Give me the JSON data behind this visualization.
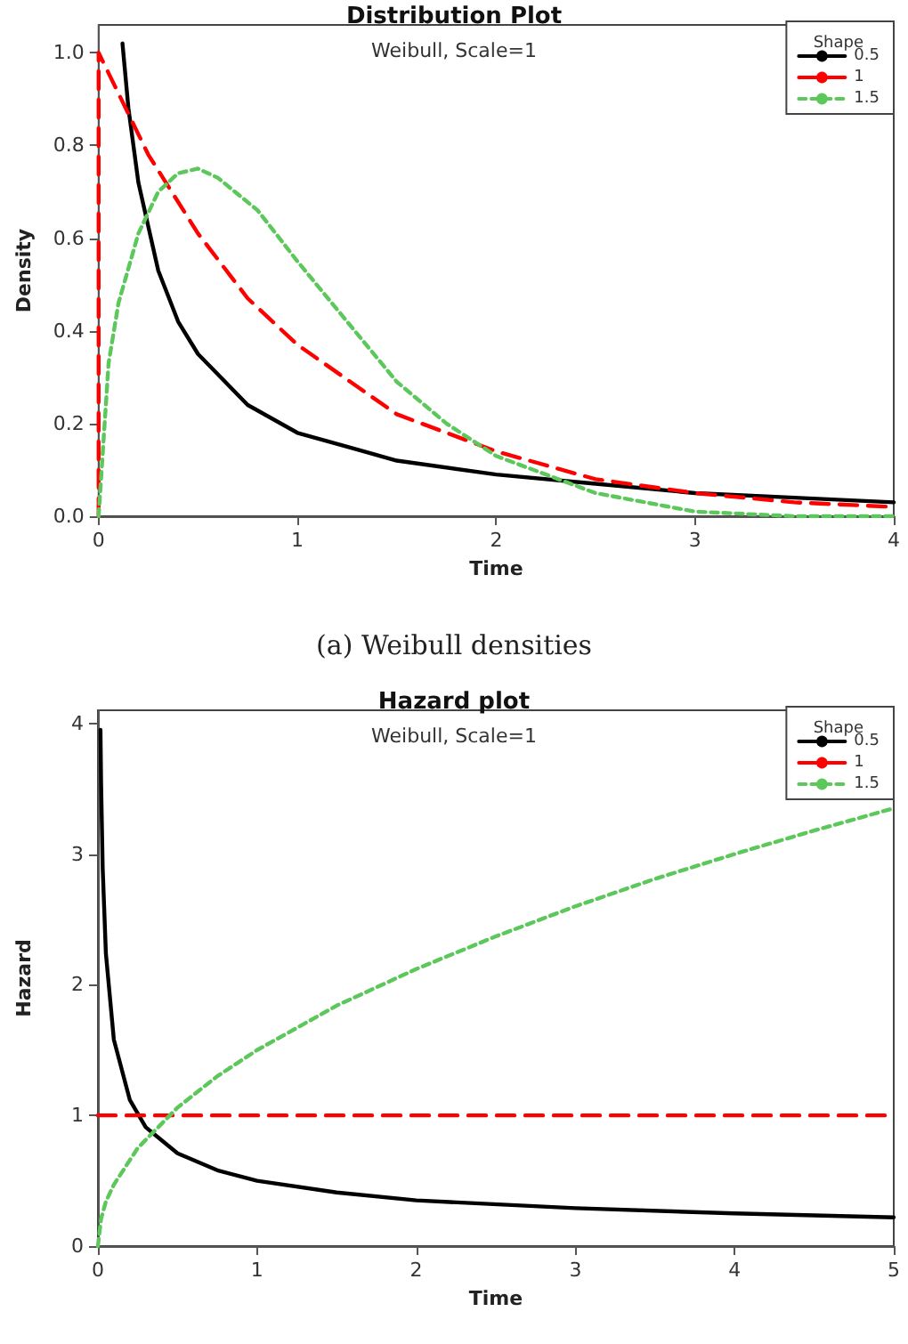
{
  "chart_data": [
    {
      "type": "line",
      "title": "Distribution Plot",
      "subtitle": "Weibull, Scale=1",
      "xlabel": "Time",
      "ylabel": "Density",
      "legend_title": "Shape",
      "annotations": [
        "(a) Weibull densities"
      ],
      "xlim": [
        0,
        4
      ],
      "xticks": [
        0,
        1,
        2,
        3,
        4
      ],
      "ylim": [
        0,
        1.06
      ],
      "yticks": [
        {
          "value": 0,
          "label": "0.0"
        },
        {
          "value": 0.2,
          "label": "0.2"
        },
        {
          "value": 0.4,
          "label": "0.4"
        },
        {
          "value": 0.6,
          "label": "0.6"
        },
        {
          "value": 0.8,
          "label": "0.8"
        },
        {
          "value": 1,
          "label": "1.0"
        }
      ],
      "grid": false,
      "legend": "top right",
      "marker": "none",
      "series": [
        {
          "name": "0.5",
          "color": "#000000",
          "line_style": "solid",
          "x": [
            0.12,
            0.15,
            0.2,
            0.3,
            0.4,
            0.5,
            0.75,
            1,
            1.25,
            1.5,
            2,
            2.5,
            3,
            3.5,
            4
          ],
          "values": [
            1.02,
            0.88,
            0.72,
            0.53,
            0.42,
            0.35,
            0.24,
            0.18,
            0.15,
            0.12,
            0.09,
            0.07,
            0.05,
            0.04,
            0.03
          ]
        },
        {
          "name": "1",
          "color": "#ff0000",
          "line_style": "dashed",
          "x": [
            0,
            0,
            0.25,
            0.5,
            0.75,
            1,
            1.5,
            2,
            2.5,
            3,
            3.5,
            4
          ],
          "values": [
            0,
            1,
            0.78,
            0.61,
            0.47,
            0.37,
            0.22,
            0.14,
            0.08,
            0.05,
            0.03,
            0.02
          ]
        },
        {
          "name": "1.5",
          "color": "#5cc85c",
          "line_style": "dotted",
          "x": [
            0,
            0.05,
            0.1,
            0.2,
            0.3,
            0.4,
            0.5,
            0.6,
            0.8,
            1,
            1.25,
            1.5,
            1.75,
            2,
            2.5,
            3,
            3.5,
            4
          ],
          "values": [
            0,
            0.33,
            0.46,
            0.61,
            0.7,
            0.74,
            0.75,
            0.73,
            0.66,
            0.55,
            0.42,
            0.29,
            0.2,
            0.13,
            0.05,
            0.01,
            0,
            0
          ]
        }
      ]
    },
    {
      "type": "line",
      "title": "Hazard plot",
      "subtitle": "Weibull, Scale=1",
      "xlabel": "Time",
      "ylabel": "Hazard",
      "legend_title": "Shape",
      "xlim": [
        0,
        5
      ],
      "xticks": [
        0,
        1,
        2,
        3,
        4,
        5
      ],
      "ylim": [
        0,
        4.1
      ],
      "yticks": [
        0,
        1,
        2,
        3,
        4
      ],
      "grid": false,
      "legend": "top right",
      "marker": "none",
      "series": [
        {
          "name": "0.5",
          "color": "#000000",
          "line_style": "solid",
          "x": [
            0.016,
            0.02,
            0.03,
            0.05,
            0.1,
            0.2,
            0.3,
            0.5,
            0.75,
            1,
            1.5,
            2,
            3,
            4,
            5
          ],
          "values": [
            3.95,
            3.54,
            2.89,
            2.24,
            1.58,
            1.12,
            0.91,
            0.71,
            0.58,
            0.5,
            0.41,
            0.35,
            0.29,
            0.25,
            0.22
          ]
        },
        {
          "name": "1",
          "color": "#ff0000",
          "line_style": "dashed",
          "x": [
            0,
            5
          ],
          "values": [
            1,
            1
          ]
        },
        {
          "name": "1.5",
          "color": "#5cc85c",
          "line_style": "dotted",
          "x": [
            0,
            0.02,
            0.05,
            0.1,
            0.25,
            0.5,
            0.75,
            1,
            1.5,
            2,
            2.5,
            3,
            3.5,
            4,
            4.5,
            5
          ],
          "values": [
            0,
            0.21,
            0.34,
            0.47,
            0.75,
            1.06,
            1.3,
            1.5,
            1.84,
            2.12,
            2.37,
            2.6,
            2.81,
            3,
            3.18,
            3.35
          ]
        }
      ]
    }
  ]
}
